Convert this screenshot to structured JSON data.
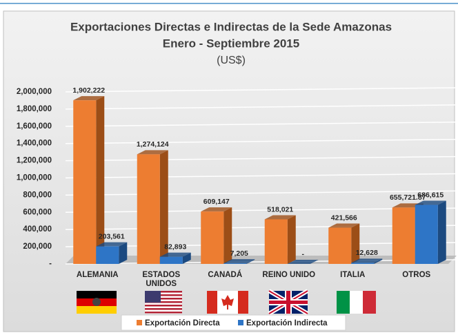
{
  "chart_data": {
    "type": "bar3d",
    "title": "Exportaciones Directas e Indirectas de la Sede Amazonas",
    "subtitle": "Enero - Septiembre 2015",
    "unit": "(US$)",
    "categories": [
      "ALEMANIA",
      "ESTADOS UNIDOS",
      "CANADÁ",
      "REINO UNIDO",
      "ITALIA",
      "OTROS"
    ],
    "series": [
      {
        "name": "Exportación Directa",
        "color": "#ed7d31",
        "side": "#9c4e17",
        "values": [
          1902222,
          1274124,
          609147,
          518021,
          421566,
          655721.87
        ],
        "value_labels": [
          "1,902,222",
          "1,274,124",
          "609,147",
          "518,021",
          "421,566",
          "655,721.87"
        ]
      },
      {
        "name": "Exportación Indirecta",
        "color": "#2e75c6",
        "side": "#1c4a80",
        "values": [
          203561,
          82893,
          7205,
          0,
          12628,
          686615
        ],
        "value_labels": [
          "203,561",
          "82,893",
          "7,205",
          "-",
          "12,628",
          "686,615"
        ]
      }
    ],
    "ylim": [
      0,
      2000000
    ],
    "yticks": [
      {
        "value": 0,
        "label": "-"
      },
      {
        "value": 200000,
        "label": "200,000"
      },
      {
        "value": 400000,
        "label": "400,000"
      },
      {
        "value": 600000,
        "label": "600,000"
      },
      {
        "value": 800000,
        "label": "800,000"
      },
      {
        "value": 1000000,
        "label": "1,000,000"
      },
      {
        "value": 1200000,
        "label": "1,200,000"
      },
      {
        "value": 1400000,
        "label": "1,400,000"
      },
      {
        "value": 1600000,
        "label": "1,600,000"
      },
      {
        "value": 1800000,
        "label": "1,800,000"
      },
      {
        "value": 2000000,
        "label": "2,000,000"
      }
    ],
    "grid": true
  }
}
